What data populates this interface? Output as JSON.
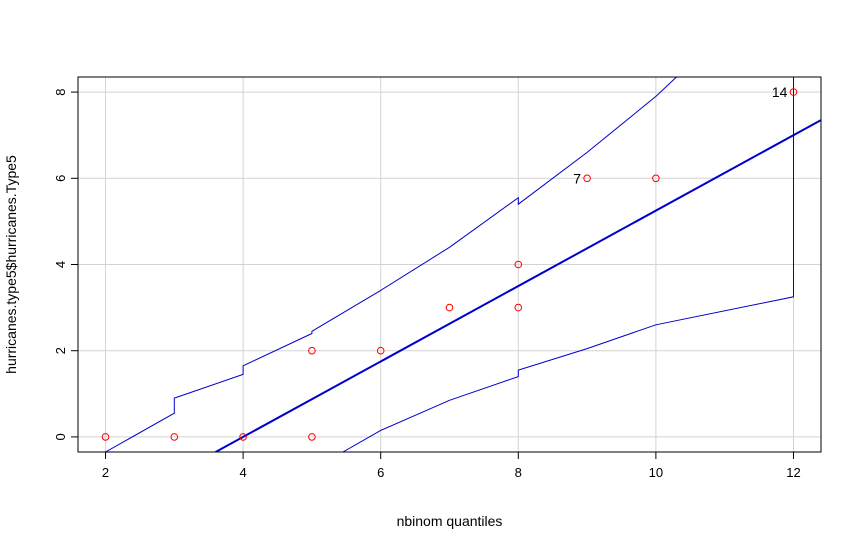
{
  "chart_data": {
    "type": "scatter",
    "title": "",
    "xlabel": "nbinom quantiles",
    "ylabel": "hurricanes.type5$hurricanes.Type5",
    "xlim": [
      1.6,
      12.4
    ],
    "ylim": [
      -0.35,
      8.35
    ],
    "x_ticks": [
      2,
      4,
      6,
      8,
      10,
      12
    ],
    "y_ticks": [
      0,
      2,
      4,
      6,
      8
    ],
    "grid": true,
    "colors": {
      "points": "#ff0000",
      "lines": "#0000cc",
      "grid": "#d3d3d3",
      "frame": "#000000"
    },
    "points": [
      {
        "x": 2,
        "y": 0
      },
      {
        "x": 3,
        "y": 0
      },
      {
        "x": 4,
        "y": 0
      },
      {
        "x": 5,
        "y": 0
      },
      {
        "x": 5,
        "y": 2
      },
      {
        "x": 6,
        "y": 2
      },
      {
        "x": 7,
        "y": 3
      },
      {
        "x": 8,
        "y": 3
      },
      {
        "x": 8,
        "y": 4
      },
      {
        "x": 9,
        "y": 6,
        "label": "7"
      },
      {
        "x": 10,
        "y": 6
      },
      {
        "x": 12,
        "y": 8,
        "label": "14"
      }
    ],
    "reference_line": {
      "x": [
        3.6,
        12.4
      ],
      "y": [
        -0.35,
        7.35
      ]
    },
    "upper_envelope": {
      "x": [
        2,
        3,
        3,
        4,
        4,
        5,
        5,
        6,
        7,
        8,
        8,
        9,
        10,
        10.3
      ],
      "y": [
        -0.35,
        0.55,
        0.9,
        1.45,
        1.65,
        2.4,
        2.45,
        3.4,
        4.4,
        5.55,
        5.4,
        6.6,
        7.9,
        8.35
      ]
    },
    "lower_envelope": {
      "x": [
        5.45,
        6,
        7,
        8,
        8,
        9,
        10,
        12,
        12,
        12
      ],
      "y": [
        -0.35,
        0.15,
        0.85,
        1.4,
        1.55,
        2.05,
        2.6,
        3.25,
        7.9,
        8.35
      ]
    }
  }
}
